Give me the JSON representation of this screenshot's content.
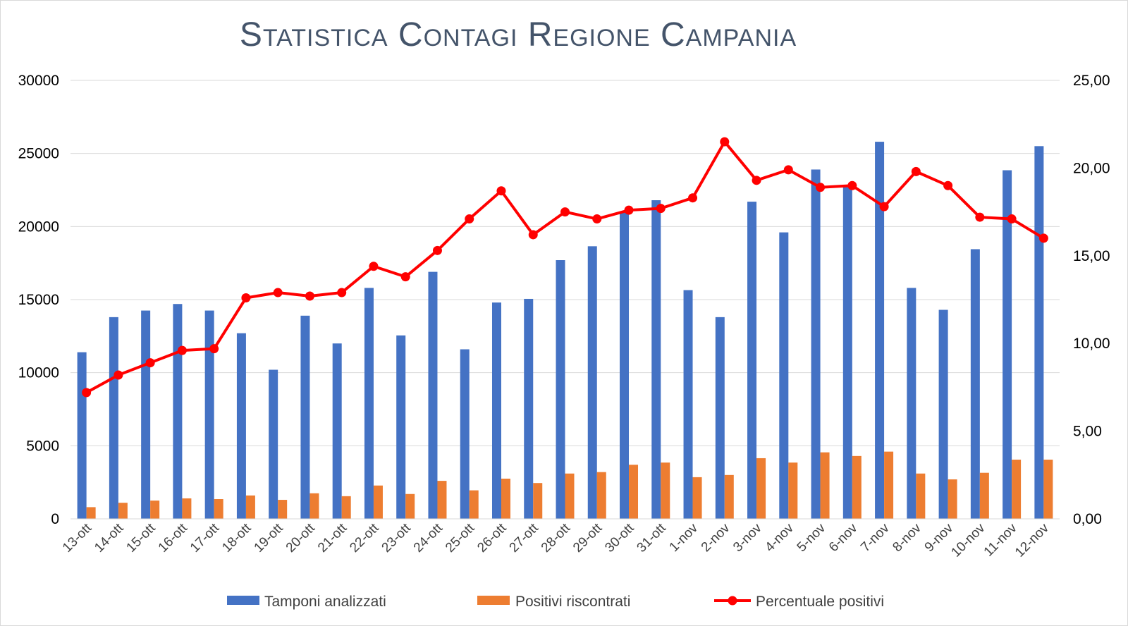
{
  "chart_data": {
    "type": "bar",
    "title": "Statistica Contagi Regione Campania",
    "categories": [
      "13-ott",
      "14-ott",
      "15-ott",
      "16-ott",
      "17-ott",
      "18-ott",
      "19-ott",
      "20-ott",
      "21-ott",
      "22-ott",
      "23-ott",
      "24-ott",
      "25-ott",
      "26-ott",
      "27-ott",
      "28-ott",
      "29-ott",
      "30-ott",
      "31-ott",
      "1-nov",
      "2-nov",
      "3-nov",
      "4-nov",
      "5-nov",
      "6-nov",
      "7-nov",
      "8-nov",
      "9-nov",
      "10-nov",
      "11-nov",
      "12-nov"
    ],
    "series": [
      {
        "name": "Tamponi analizzati",
        "type": "bar",
        "axis": "left",
        "color": "#4472c4",
        "values": [
          11400,
          13800,
          14250,
          14700,
          14250,
          12700,
          10200,
          13900,
          12000,
          15800,
          12550,
          16900,
          11600,
          14800,
          15050,
          17700,
          18650,
          21000,
          21800,
          15650,
          13800,
          21700,
          19600,
          23900,
          22800,
          25800,
          15800,
          14300,
          18450,
          23850,
          25500
        ]
      },
      {
        "name": "Positivi riscontrati",
        "type": "bar",
        "axis": "left",
        "color": "#ed7d31",
        "values": [
          800,
          1100,
          1250,
          1400,
          1350,
          1600,
          1300,
          1750,
          1550,
          2280,
          1700,
          2600,
          1950,
          2750,
          2450,
          3100,
          3200,
          3700,
          3850,
          2850,
          3000,
          4150,
          3850,
          4550,
          4300,
          4600,
          3100,
          2700,
          3150,
          4050,
          4050
        ]
      },
      {
        "name": "Percentuale positivi",
        "type": "line",
        "axis": "right",
        "color": "#ff0000",
        "values": [
          7.2,
          8.2,
          8.9,
          9.6,
          9.7,
          12.6,
          12.9,
          12.7,
          12.9,
          14.4,
          13.8,
          15.3,
          17.1,
          18.7,
          16.2,
          17.5,
          17.1,
          17.6,
          17.7,
          18.3,
          21.5,
          19.3,
          19.9,
          18.9,
          19.0,
          17.8,
          19.8,
          19.0,
          17.2,
          17.1,
          16.0
        ]
      }
    ],
    "y_left": {
      "ylim": [
        0,
        30000
      ],
      "ticks": [
        "0",
        "5000",
        "10000",
        "15000",
        "20000",
        "25000",
        "30000"
      ]
    },
    "y_right": {
      "ylim": [
        0,
        25
      ],
      "ticks": [
        "0,00",
        "5,00",
        "10,00",
        "15,00",
        "20,00",
        "25,00"
      ]
    },
    "grid": true,
    "legend": "bottom"
  }
}
